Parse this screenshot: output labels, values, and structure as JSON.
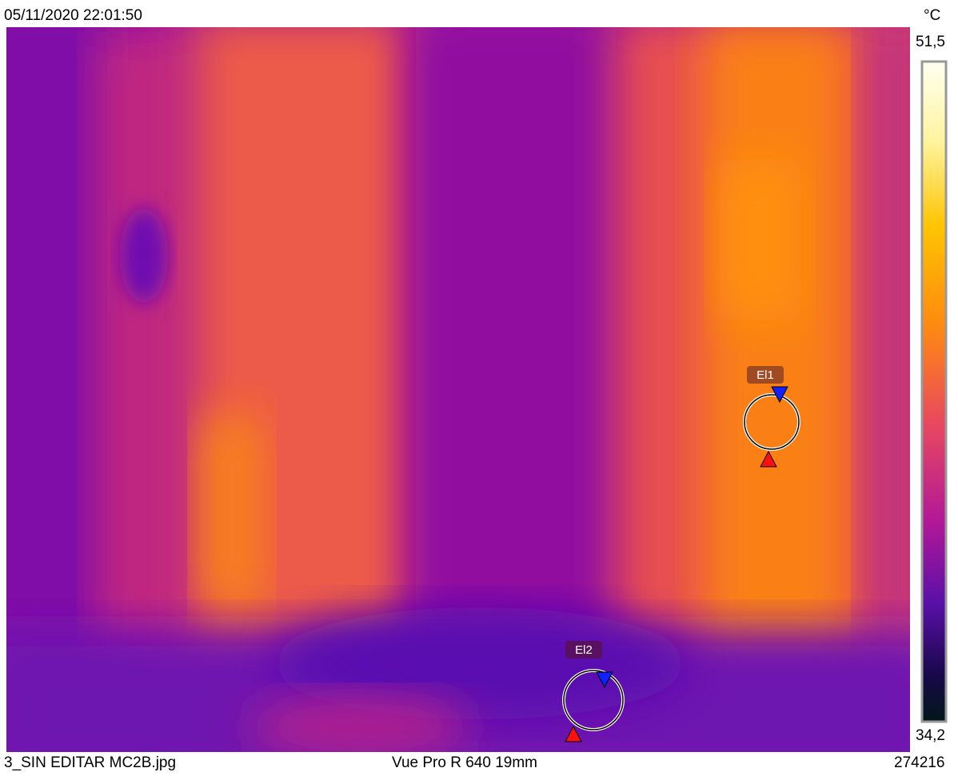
{
  "header": {
    "timestamp": "05/11/2020 22:01:50",
    "unit": "°C"
  },
  "scale": {
    "max": "51,5",
    "min": "34,2"
  },
  "markers": [
    {
      "label": "El1"
    },
    {
      "label": "El2"
    }
  ],
  "footer": {
    "filename": "3_SIN EDITAR MC2B.jpg",
    "camera": "Vue Pro R 640 19mm",
    "serial": "274216"
  }
}
